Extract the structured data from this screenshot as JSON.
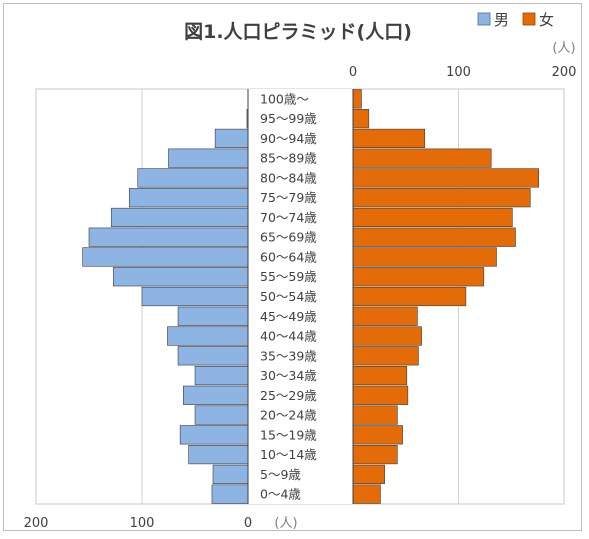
{
  "chart_data": {
    "type": "bar",
    "orientation": "horizontal",
    "layout": "population-pyramid",
    "title": "図1.人口ピラミッド(人口)",
    "unit_label": "(人)",
    "categories": [
      "100歳～",
      "95～99歳",
      "90～94歳",
      "85～89歳",
      "80～84歳",
      "75～79歳",
      "70～74歳",
      "65～69歳",
      "60～64歳",
      "55～59歳",
      "50～54歳",
      "45～49歳",
      "40～44歳",
      "35～39歳",
      "30～34歳",
      "25～29歳",
      "20～24歳",
      "15～19歳",
      "10～14歳",
      "5～9歳",
      "0～4歳"
    ],
    "series": [
      {
        "name": "男",
        "color": "#8eb4e3",
        "values": [
          0,
          1,
          31,
          75,
          104,
          112,
          129,
          150,
          156,
          127,
          100,
          66,
          76,
          66,
          50,
          61,
          50,
          64,
          56,
          33,
          34
        ]
      },
      {
        "name": "女",
        "color": "#e36c09",
        "values": [
          8,
          15,
          68,
          131,
          176,
          168,
          151,
          154,
          136,
          124,
          107,
          61,
          65,
          62,
          51,
          52,
          42,
          47,
          42,
          30,
          26
        ]
      }
    ],
    "male_axis": {
      "ticks": [
        "200",
        "100",
        "0"
      ],
      "range": [
        0,
        200
      ],
      "position": "bottom"
    },
    "female_axis": {
      "ticks": [
        "0",
        "100",
        "200"
      ],
      "range": [
        0,
        200
      ],
      "position": "top"
    },
    "legend": {
      "position": "top-right",
      "items": [
        "男",
        "女"
      ]
    },
    "grid": true
  }
}
